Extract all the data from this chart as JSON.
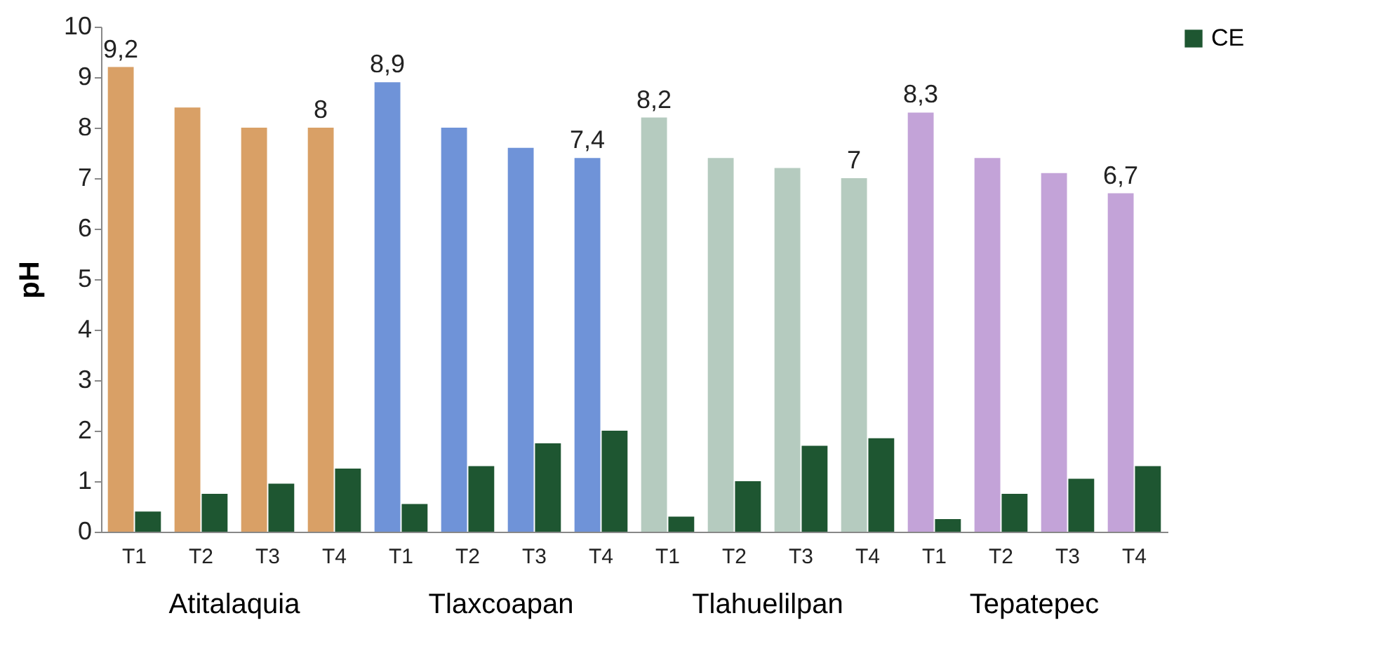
{
  "chart_data": {
    "type": "bar",
    "ylabel": "pH",
    "categories": [
      "T1",
      "T2",
      "T3",
      "T4",
      "T1",
      "T2",
      "T3",
      "T4",
      "T1",
      "T2",
      "T3",
      "T4",
      "T1",
      "T2",
      "T3",
      "T4"
    ],
    "annotations": [
      "Atitalaquia",
      "Tlaxcoapan",
      "Tlahuelilpan",
      "Tepatepec"
    ],
    "series": [
      {
        "colors": [
          "#d9a066",
          "#d9a066",
          "#d9a066",
          "#d9a066",
          "#6f93d8",
          "#6f93d8",
          "#6f93d8",
          "#6f93d8",
          "#b5cbbf",
          "#b5cbbf",
          "#b5cbbf",
          "#b5cbbf",
          "#c3a3d8",
          "#c3a3d8",
          "#c3a3d8",
          "#c3a3d8"
        ],
        "values": [
          9.2,
          8.4,
          8.0,
          8.0,
          8.9,
          8.0,
          7.6,
          7.4,
          8.2,
          7.4,
          7.2,
          7.0,
          8.3,
          7.4,
          7.1,
          6.7
        ],
        "value_labels": [
          "9,2",
          null,
          null,
          "8",
          "8,9",
          null,
          null,
          "7,4",
          "8,2",
          null,
          null,
          "7",
          "8,3",
          null,
          null,
          "6,7"
        ]
      },
      {
        "name": "CE",
        "color": "#1e5631",
        "values": [
          0.4,
          0.75,
          0.95,
          1.25,
          0.55,
          1.3,
          1.75,
          2.0,
          0.3,
          1.0,
          1.7,
          1.85,
          0.25,
          0.75,
          1.05,
          1.3
        ]
      }
    ],
    "ylim": [
      0,
      10
    ],
    "yticks": [
      0,
      1,
      2,
      3,
      4,
      5,
      6,
      7,
      8,
      9,
      10
    ],
    "grid": false,
    "legend": "right"
  }
}
